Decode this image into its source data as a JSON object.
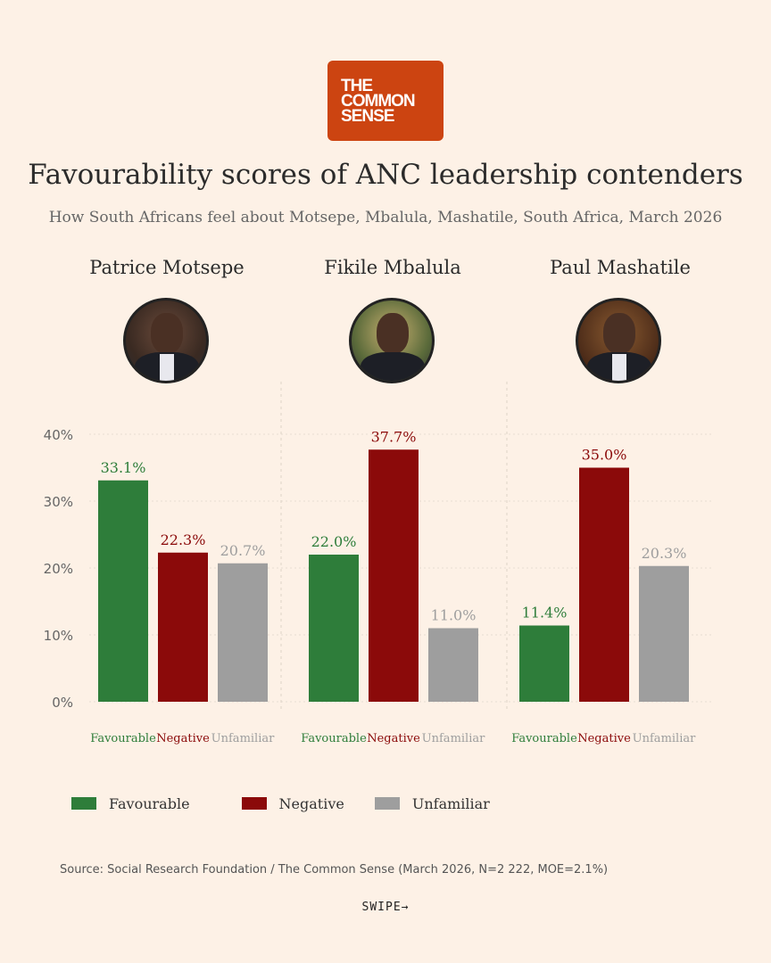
{
  "logo": {
    "line1": "THE",
    "line2": "COMMON",
    "line3": "SENSE"
  },
  "title": "Favourability scores of ANC leadership contenders",
  "subtitle": "How South Africans feel about Motsepe, Mbalula, Mashatile, South Africa, March 2026",
  "colors": {
    "favourable": "#2e7d3a",
    "negative": "#8b0a0a",
    "unfamiliar": "#9e9e9e",
    "background": "#fdf1e6",
    "logo": "#cc4411"
  },
  "people": [
    {
      "name": "Patrice Motsepe"
    },
    {
      "name": "Fikile Mbalula"
    },
    {
      "name": "Paul Mashatile"
    }
  ],
  "chart_data": {
    "type": "bar",
    "categories": [
      "Patrice Motsepe",
      "Fikile Mbalula",
      "Paul Mashatile"
    ],
    "series": [
      {
        "name": "Favourable",
        "values": [
          33.1,
          22.0,
          11.4
        ],
        "labels": [
          "33.1%",
          "22.0%",
          "11.4%"
        ]
      },
      {
        "name": "Negative",
        "values": [
          22.3,
          37.7,
          35.0
        ],
        "labels": [
          "22.3%",
          "37.7%",
          "35.0%"
        ]
      },
      {
        "name": "Unfamiliar",
        "values": [
          20.7,
          11.0,
          20.3
        ],
        "labels": [
          "20.7%",
          "11.0%",
          "20.3%"
        ]
      }
    ],
    "yticks": [
      "0%",
      "10%",
      "20%",
      "30%",
      "40%"
    ],
    "ylim": [
      0,
      40
    ],
    "grid": true,
    "legend": "bottom-left"
  },
  "legend": [
    {
      "label": "Favourable"
    },
    {
      "label": "Negative"
    },
    {
      "label": "Unfamiliar"
    }
  ],
  "source": "Source: Social Research Foundation / The Common Sense (March 2026, N=2 222, MOE=2.1%)",
  "swipe": "SWIPE→"
}
